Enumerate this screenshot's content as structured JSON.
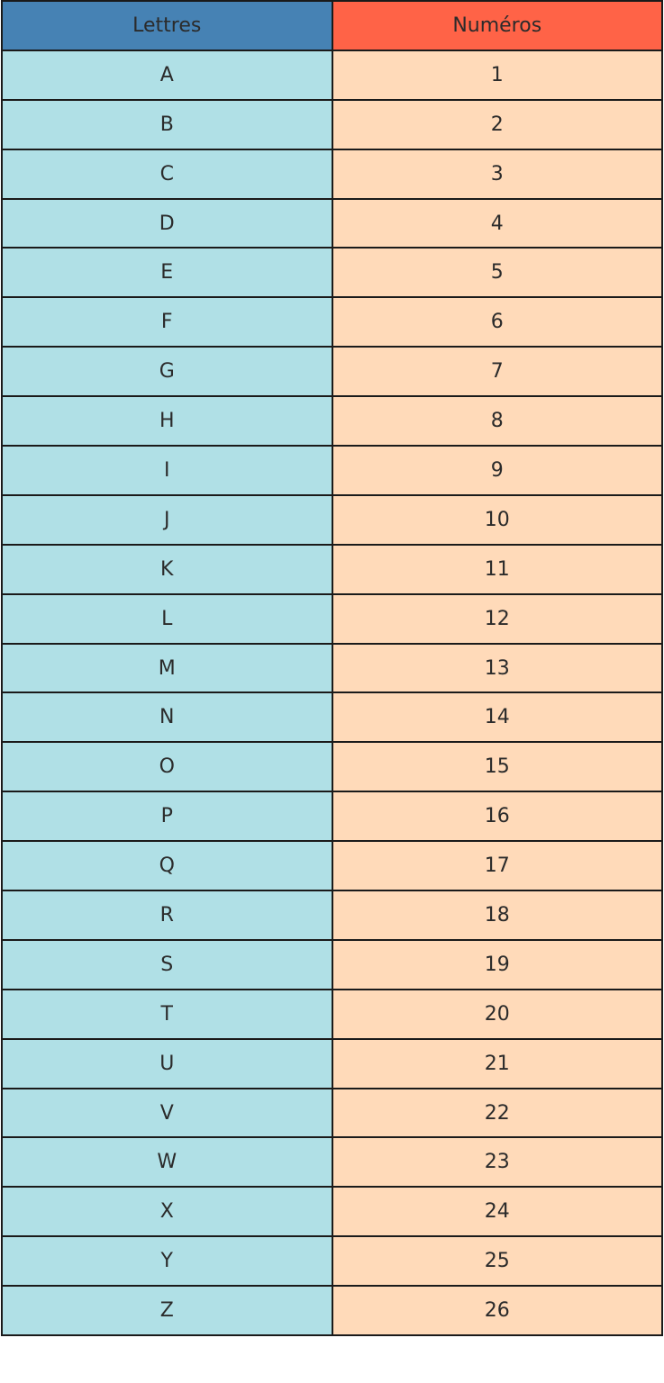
{
  "table": {
    "headers": [
      "Lettres",
      "Numéros"
    ],
    "colors": {
      "header_left": "#4682b4",
      "header_right": "#ff6347",
      "body_left": "#b0e0e6",
      "body_right": "#ffdab9"
    },
    "rows": [
      [
        "A",
        "1"
      ],
      [
        "B",
        "2"
      ],
      [
        "C",
        "3"
      ],
      [
        "D",
        "4"
      ],
      [
        "E",
        "5"
      ],
      [
        "F",
        "6"
      ],
      [
        "G",
        "7"
      ],
      [
        "H",
        "8"
      ],
      [
        "I",
        "9"
      ],
      [
        "J",
        "10"
      ],
      [
        "K",
        "11"
      ],
      [
        "L",
        "12"
      ],
      [
        "M",
        "13"
      ],
      [
        "N",
        "14"
      ],
      [
        "O",
        "15"
      ],
      [
        "P",
        "16"
      ],
      [
        "Q",
        "17"
      ],
      [
        "R",
        "18"
      ],
      [
        "S",
        "19"
      ],
      [
        "T",
        "20"
      ],
      [
        "U",
        "21"
      ],
      [
        "V",
        "22"
      ],
      [
        "W",
        "23"
      ],
      [
        "X",
        "24"
      ],
      [
        "Y",
        "25"
      ],
      [
        "Z",
        "26"
      ]
    ]
  }
}
